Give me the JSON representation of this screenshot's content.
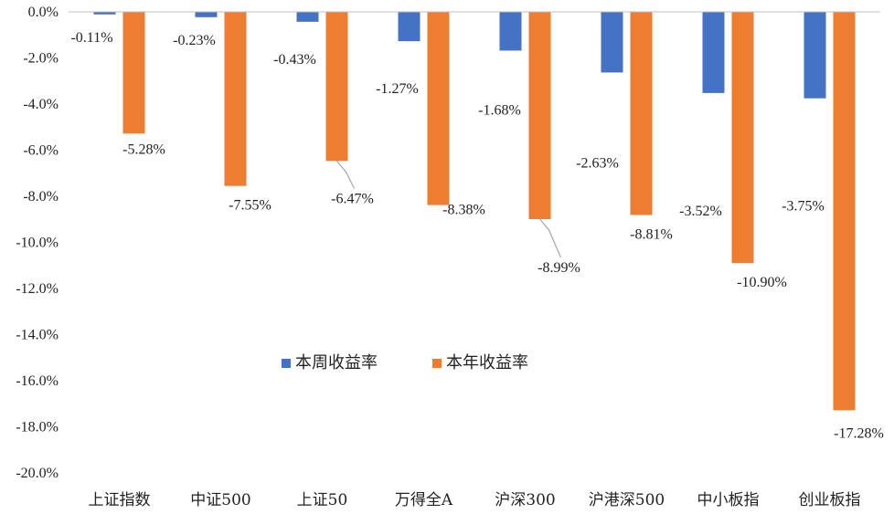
{
  "chart_data": {
    "type": "bar",
    "categories": [
      "上证指数",
      "中证500",
      "上证50",
      "万得全A",
      "沪深300",
      "沪港深500",
      "中小板指",
      "创业板指"
    ],
    "series": [
      {
        "name": "本周收益率",
        "color": "#4472C4",
        "values": [
          -0.11,
          -0.23,
          -0.43,
          -1.27,
          -1.68,
          -2.63,
          -3.52,
          -3.75
        ],
        "labels": [
          "-0.11%",
          "-0.23%",
          "-0.43%",
          "-1.27%",
          "-1.68%",
          "-2.63%",
          "-3.52%",
          "-3.75%"
        ]
      },
      {
        "name": "本年收益率",
        "color": "#ED7D31",
        "values": [
          -5.28,
          -7.55,
          -6.47,
          -8.38,
          -8.99,
          -8.81,
          -10.9,
          -17.28
        ],
        "labels": [
          "-5.28%",
          "-7.55%",
          "-6.47%",
          "-8.38%",
          "-8.99%",
          "-8.81%",
          "-10.90%",
          "-17.28%"
        ]
      }
    ],
    "y_ticks": [
      "0.0%",
      "-2.0%",
      "-4.0%",
      "-6.0%",
      "-8.0%",
      "-10.0%",
      "-12.0%",
      "-14.0%",
      "-16.0%",
      "-18.0%",
      "-20.0%"
    ],
    "ylim": [
      -20,
      0
    ],
    "title": "",
    "xlabel": "",
    "ylabel": "",
    "grid": false,
    "legend_position": "center"
  }
}
